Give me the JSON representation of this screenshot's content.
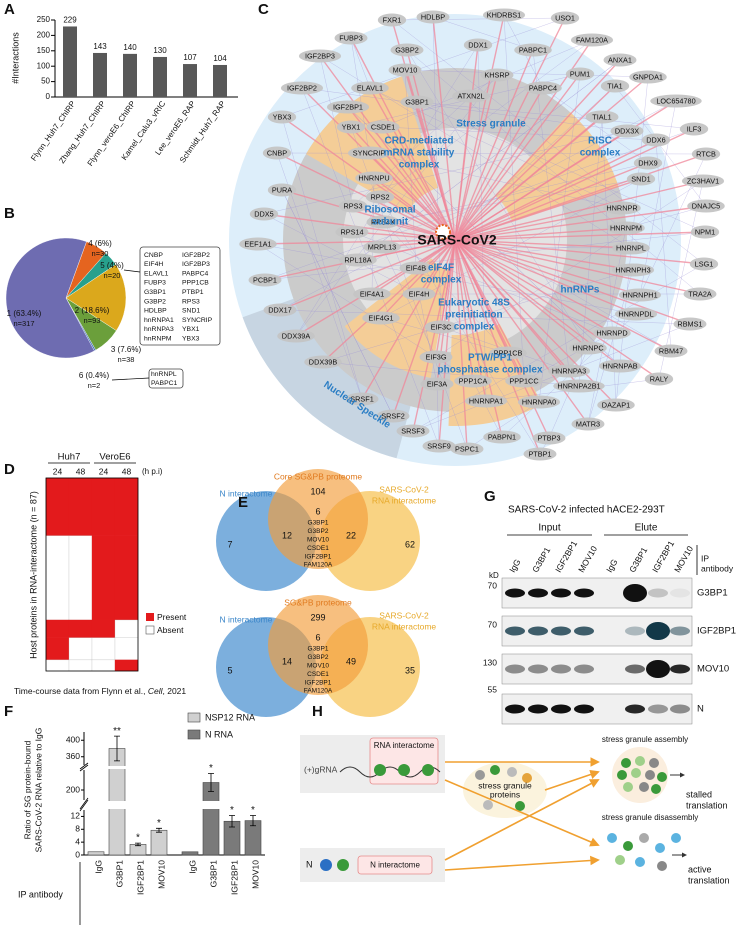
{
  "panel_labels": [
    "A",
    "B",
    "C",
    "D",
    "E",
    "F",
    "G",
    "H"
  ],
  "chart_data": [
    {
      "type": "bar",
      "ylabel": "#Interactions",
      "categories": [
        "Flynn_Huh7_ChIRP",
        "Zhang_Huh7_ChIRP",
        "Flynn_veroE6_ChIRP",
        "Kamel_Calu3_vRIC",
        "Lee_veroE6_RAP",
        "Schmidt_Huh7_RAP"
      ],
      "values": [
        229,
        143,
        140,
        130,
        107,
        104
      ],
      "color": "#585858",
      "ylim": [
        0,
        250
      ],
      "yticks": [
        0,
        50,
        100,
        150,
        200,
        250
      ]
    },
    {
      "type": "pie",
      "values": [
        6,
        4,
        18.6,
        7.6,
        0.4,
        63.4
      ],
      "value_labels": [
        "4 (6%)",
        "5 (4%)",
        "2 (18.6%)",
        "3 (7.6%)",
        "6 (0.4%)",
        "1 (63.4%)"
      ],
      "count_labels": [
        "n=30",
        "n=20",
        "n=93",
        "n=38",
        "n=2",
        "n=317"
      ],
      "colors": [
        "#e5641f",
        "#27a08d",
        "#dba81c",
        "#6b9f3b",
        "#3e6fb6",
        "#6e6cb1"
      ],
      "slice5_proteins": [
        "CNBP",
        "EIF4H",
        "ELAVL1",
        "FUBP3",
        "G3BP1",
        "G3BP2",
        "HDLBP",
        "hnRNPA1",
        "hnRNPA3",
        "hnRNPM",
        "IGF2BP2",
        "IGF2BP3",
        "PABPC4",
        "PPP1CB",
        "PTBP1",
        "RPS3",
        "SND1",
        "SYNCRIP",
        "YBX1",
        "YBX3"
      ],
      "slice6_proteins": [
        "hnRNPL",
        "PABPC1"
      ]
    },
    {
      "type": "grouped_bar_broken_axis",
      "ylabel": [
        "Ratio of SG protein-bound",
        "SARS-CoV-2 RNA relative to IgG"
      ],
      "xlabel": "IP antibody",
      "categories": [
        "IgG",
        "G3BP1",
        "IGF2BP1",
        "MOV10"
      ],
      "series": [
        {
          "name": "NSP12 RNA",
          "color": "#d0d0d0",
          "values": [
            1,
            380,
            3.3,
            7.7
          ],
          "errors": [
            null,
            30,
            0.4,
            0.6
          ],
          "significance": [
            null,
            "**",
            "*",
            "*"
          ]
        },
        {
          "name": "N RNA",
          "color": "#7a7a7a",
          "values": [
            1,
            215,
            10.5,
            10.7
          ],
          "errors": [
            null,
            18,
            1.8,
            1.6
          ],
          "significance": [
            null,
            "*",
            "*",
            "*"
          ]
        }
      ],
      "segments": [
        {
          "ylim": [
            0,
            14
          ],
          "yticks": [
            0,
            4,
            8,
            12
          ]
        },
        {
          "ylim": [
            180,
            240
          ],
          "yticks": [
            200
          ]
        },
        {
          "ylim": [
            340,
            420
          ],
          "yticks": [
            360,
            400
          ]
        }
      ]
    }
  ],
  "network": {
    "center": "SARS-CoV2",
    "complexes": [
      [
        "Stress granule"
      ],
      [
        "CRD-mediated",
        "mRNA stability",
        "complex"
      ],
      [
        "RISC",
        "complex"
      ],
      [
        "Ribosomal",
        "subunit"
      ],
      [
        "eIF4F",
        "complex"
      ],
      [
        "hnRNPs"
      ],
      [
        "Eukaryotic 48S",
        "preinitiation",
        "complex"
      ],
      [
        "PTW/PP1",
        "phosphatase complex"
      ],
      [
        "Nuclear Speckle"
      ]
    ],
    "nodes": [
      "FXR1",
      "HDLBP",
      "KHDRBS1",
      "USO1",
      "FUBP3",
      "FAM120A",
      "IGF2BP3",
      "ANXA1",
      "G3BP2",
      "DDX1",
      "PABPC1",
      "GNPDA1",
      "IGF2BP2",
      "ELAVL1",
      "MOV10",
      "KHSRP",
      "PUM1",
      "PABPC4",
      "ATXN2L",
      "G3BP1",
      "TIA1",
      "LOC654780",
      "IGF2BP1",
      "TIAL1",
      "YBX3",
      "YBX1",
      "CSDE1",
      "DDX3X",
      "ILF3",
      "DDX6",
      "CNBP",
      "SYNCRIP",
      "DHX9",
      "RTCB",
      "SND1",
      "HNRNPU",
      "ZC3HAV1",
      "PURA",
      "RPS2",
      "RPS3",
      "HNRNPR",
      "DNAJC5",
      "DDX5",
      "RPS4X",
      "HNRNPM",
      "HNRNPL",
      "NPM1",
      "RPS14",
      "MRPL13",
      "EEF1A1",
      "HNRNPH3",
      "LSG1",
      "RPL18A",
      "EIF4B",
      "HNRNPH1",
      "PCBP1",
      "EIF4A1",
      "EIF4H",
      "HNRNPDL",
      "TRA2A",
      "DDX17",
      "EIF4G1",
      "HNRNPD",
      "RBMS1",
      "EIF3C",
      "HNRNPC",
      "DDX39A",
      "HNRNPAB",
      "RBM47",
      "EIF3G",
      "PPP1CB",
      "DDX39B",
      "EIF3A",
      "HNRNPA3",
      "HNRNPA2B1",
      "RALY",
      "PPP1CA",
      "PPP1CC",
      "HNRNPA1",
      "HNRNPA0",
      "DAZAP1",
      "SRSF1",
      "SRSF2",
      "MATR3",
      "SRSF3",
      "PABPN1",
      "PTBP3",
      "SRSF9",
      "PSPC1",
      "PTBP1"
    ]
  },
  "heatmap": {
    "column_groups": [
      "Huh7",
      "VeroE6"
    ],
    "columns": [
      24,
      48,
      24,
      48
    ],
    "unit": "(h p.i)",
    "ylabel": "Host proteins in RNA-interactome (n = 87)",
    "legend": [
      "Present",
      "Absent"
    ],
    "row_groups": [
      {
        "pattern": [
          1,
          1,
          1,
          1
        ],
        "count": 26
      },
      {
        "pattern": [
          0,
          0,
          1,
          1
        ],
        "count": 38
      },
      {
        "pattern": [
          1,
          1,
          1,
          0
        ],
        "count": 8
      },
      {
        "pattern": [
          1,
          0,
          0,
          0
        ],
        "count": 10
      },
      {
        "pattern": [
          0,
          0,
          0,
          1
        ],
        "count": 5
      }
    ],
    "caption": [
      "Time-course data from Flynn et al., ",
      "Cell",
      ", 2021"
    ]
  },
  "venn": [
    {
      "title": "Core SG&PB proteome",
      "left": "N interactome",
      "right": [
        "SARS-CoV-2",
        "RNA interactome"
      ],
      "counts": [
        104,
        7,
        12,
        6,
        22,
        62
      ],
      "shared_proteins": [
        "G3BP1",
        "G3BP2",
        "MOV10",
        "CSDE1",
        "IGF2BP1",
        "FAM120A"
      ]
    },
    {
      "title": "SG&PB proteome",
      "left": "N interactome",
      "right": [
        "SARS-CoV-2",
        "RNA interactome"
      ],
      "counts": [
        299,
        5,
        14,
        6,
        49,
        35
      ],
      "shared_proteins": [
        "G3BP1",
        "G3BP2",
        "MOV10",
        "CSDE1",
        "IGF2BP1",
        "FAM120A"
      ]
    }
  ],
  "blot": {
    "title": "SARS-CoV-2 infected hACE2-293T",
    "groups": [
      "Input",
      "Elute"
    ],
    "lanes": [
      "IgG",
      "G3BP1",
      "IGF2BP1",
      "MOV10",
      "IgG",
      "G3BP1",
      "IGF2BP1",
      "MOV10"
    ],
    "ip_label": [
      "IP",
      "antibody"
    ],
    "kd": "kD",
    "markers": [
      70,
      70,
      130,
      55
    ],
    "targets": [
      "G3BP1",
      "IGF2BP1",
      "MOV10",
      "N"
    ]
  },
  "model": {
    "grna": "(+)gRNA",
    "rna_interactome": "RNA interactome",
    "sg_proteins": [
      "stress granule",
      "proteins"
    ],
    "n": "N",
    "n_interactome": "N interactome",
    "assembly": "stress granule assembly",
    "stalled": [
      "stalled",
      "translation"
    ],
    "disassembly": "stress granule disassembly",
    "active": [
      "active",
      "translation"
    ]
  }
}
